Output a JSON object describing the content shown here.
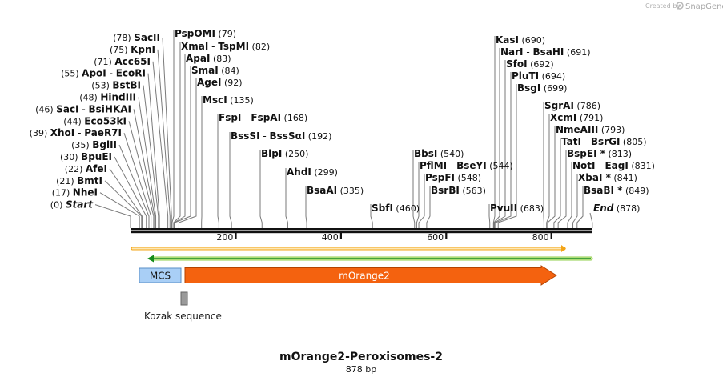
{
  "credit": {
    "prefix": "Created by",
    "brand": "SnapGene",
    "logo_icon": "snapgene-logo-icon"
  },
  "title": "mOrange2-Peroxisomes-2",
  "length_label": "878 bp",
  "ruler": {
    "ticks": [
      "200",
      "400",
      "600",
      "800"
    ]
  },
  "features": {
    "mcs": "MCS",
    "morange2": "mOrange2",
    "kozak": "Kozak sequence",
    "colors": {
      "mcs": "#a9cff6",
      "morange2": "#f4620f",
      "kozak": "#9a9a9a",
      "orange_line": "#f3a417",
      "green_line": "#158c1a"
    }
  },
  "left_sites": [
    {
      "pos": "(78)",
      "name": "SacII"
    },
    {
      "pos": "(75)",
      "name": "KpnI"
    },
    {
      "pos": "(71)",
      "name": "Acc65I"
    },
    {
      "pos": "(55)",
      "name": "ApoI",
      "alt": "EcoRI"
    },
    {
      "pos": "(53)",
      "name": "BstBI"
    },
    {
      "pos": "(48)",
      "name": "HindIII"
    },
    {
      "pos": "(46)",
      "name": "SacI",
      "alt": "BsiHKAI"
    },
    {
      "pos": "(44)",
      "name": "Eco53kI"
    },
    {
      "pos": "(39)",
      "name": "XhoI",
      "alt": "PaeR7I"
    },
    {
      "pos": "(35)",
      "name": "BglII"
    },
    {
      "pos": "(30)",
      "name": "BpuEI"
    },
    {
      "pos": "(22)",
      "name": "AfeI"
    },
    {
      "pos": "(21)",
      "name": "BmtI"
    },
    {
      "pos": "(17)",
      "name": "NheI"
    },
    {
      "pos": "(0)",
      "name": "Start"
    }
  ],
  "right_sites": [
    {
      "name": "PspOMI",
      "pos": "(79)"
    },
    {
      "name": "XmaI",
      "alt": "TspMI",
      "pos": "(82)"
    },
    {
      "name": "ApaI",
      "pos": "(83)"
    },
    {
      "name": "SmaI",
      "pos": "(84)"
    },
    {
      "name": "AgeI",
      "pos": "(92)"
    },
    {
      "name": "MscI",
      "pos": "(135)"
    },
    {
      "name": "FspI",
      "alt": "FspAI",
      "pos": "(168)"
    },
    {
      "name": "BssSI",
      "alt": "BssSαI",
      "pos": "(192)"
    },
    {
      "name": "BlpI",
      "pos": "(250)"
    },
    {
      "name": "AhdI",
      "pos": "(299)"
    },
    {
      "name": "BsaAI",
      "pos": "(335)"
    },
    {
      "name": "SbfI",
      "pos": "(460)"
    },
    {
      "name": "BbsI",
      "pos": "(540)"
    },
    {
      "name": "PflMI",
      "alt": "BseYI",
      "pos": "(544)"
    },
    {
      "name": "PspFI",
      "pos": "(548)"
    },
    {
      "name": "BsrBI",
      "pos": "(563)"
    },
    {
      "name": "KasI",
      "pos": "(690)"
    },
    {
      "name": "NarI",
      "alt": "BsaHI",
      "pos": "(691)"
    },
    {
      "name": "SfoI",
      "pos": "(692)"
    },
    {
      "name": "PluTI",
      "pos": "(694)"
    },
    {
      "name": "BsgI",
      "pos": "(699)"
    },
    {
      "name": "PvuII",
      "pos": "(683)"
    },
    {
      "name": "SgrAI",
      "pos": "(786)"
    },
    {
      "name": "XcmI",
      "pos": "(791)"
    },
    {
      "name": "NmeAIII",
      "pos": "(793)"
    },
    {
      "name": "TatI",
      "alt": "BsrGI",
      "pos": "(805)"
    },
    {
      "name": "BspEI *",
      "pos": "(813)"
    },
    {
      "name": "NotI",
      "alt": "EagI",
      "pos": "(831)"
    },
    {
      "name": "XbaI *",
      "pos": "(841)"
    },
    {
      "name": "BsaBI *",
      "pos": "(849)"
    },
    {
      "name": "End",
      "pos": "(878)"
    }
  ]
}
